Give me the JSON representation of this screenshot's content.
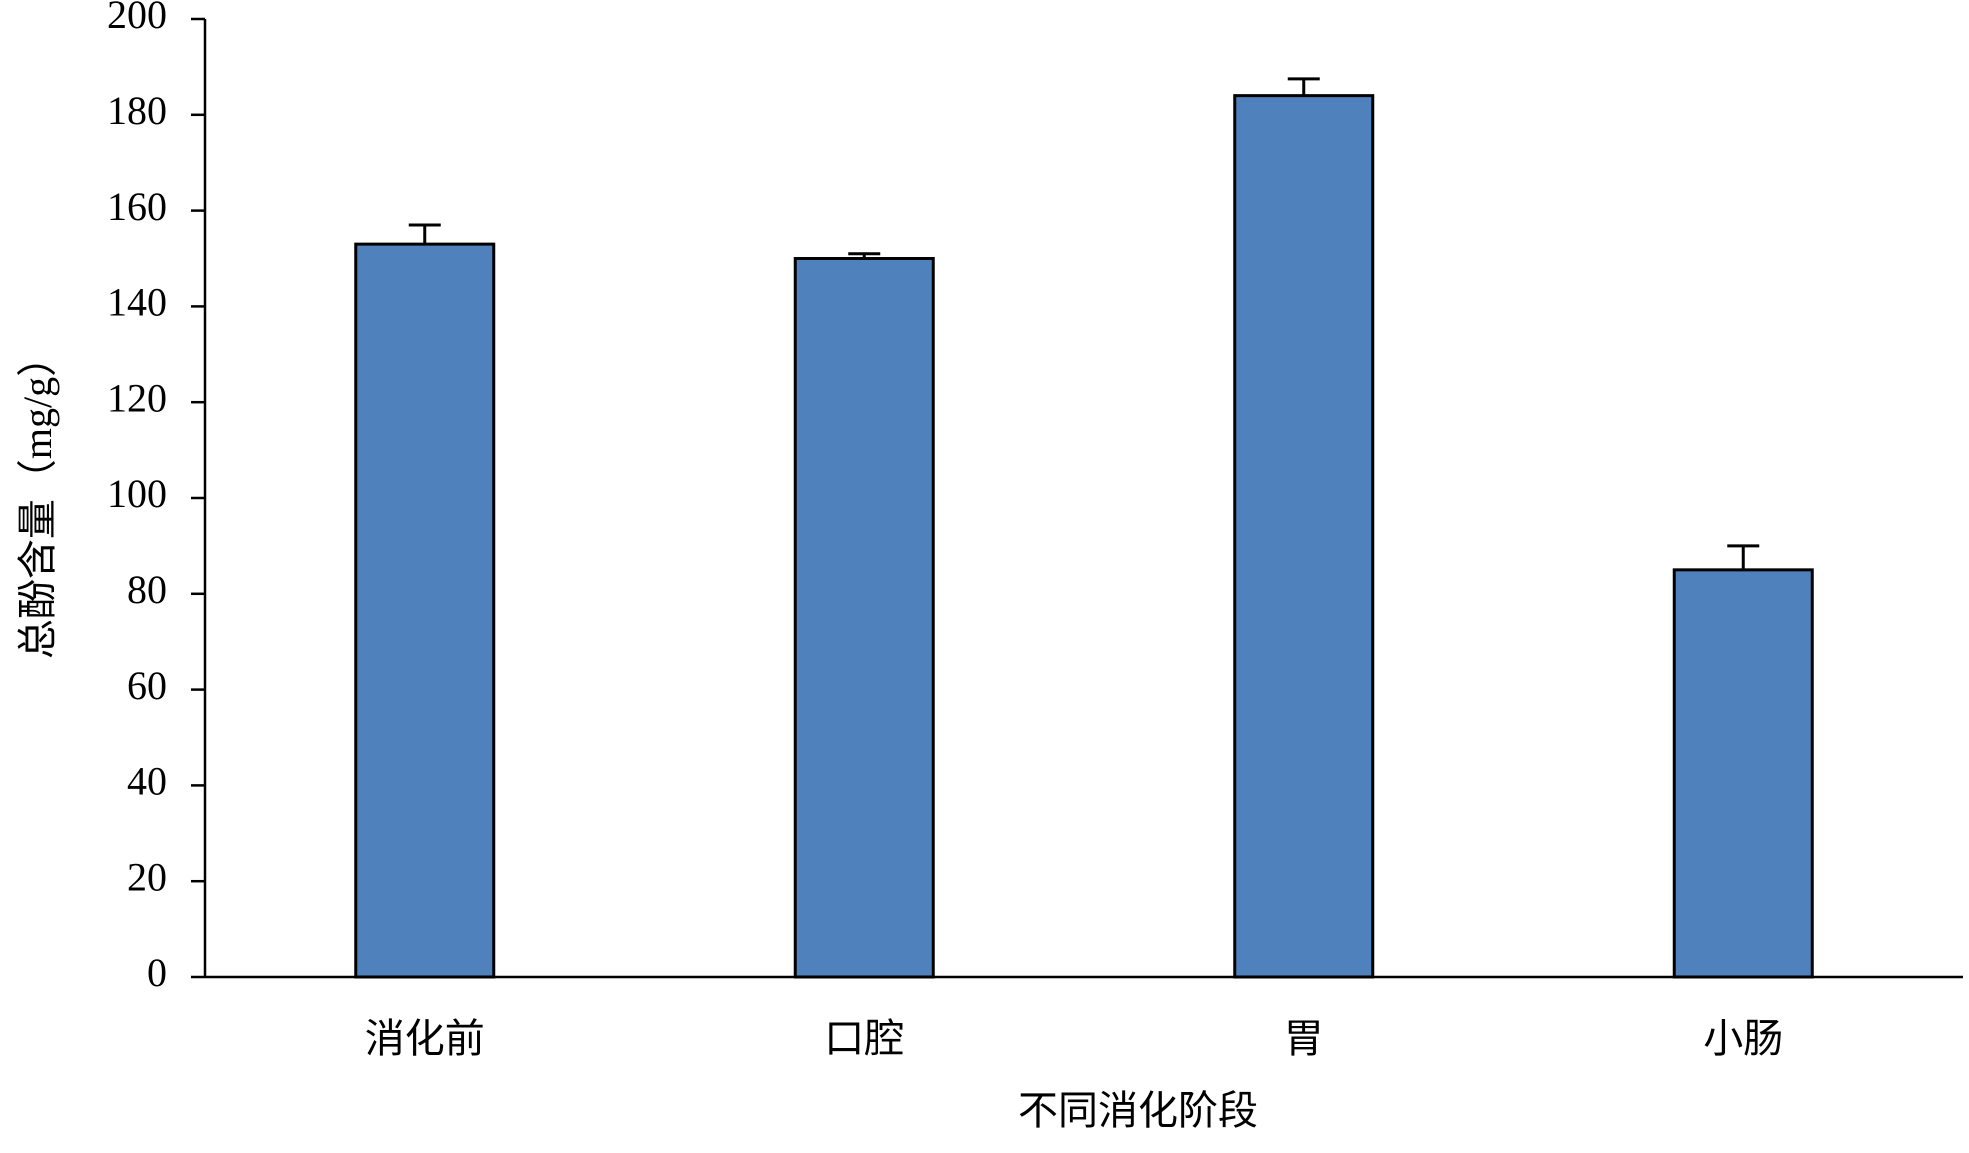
{
  "chart_data": {
    "type": "bar",
    "x_label": "不同消化阶段",
    "y_label": "总酚含量（mg/g）",
    "categories": [
      "消化前",
      "口腔",
      "胃",
      "小肠"
    ],
    "values": [
      153,
      150,
      184,
      85
    ],
    "errors": [
      4,
      1,
      3.5,
      5
    ],
    "color": "#4f81bd",
    "ylim": [
      0,
      200
    ],
    "yticks": [
      0,
      20,
      40,
      60,
      80,
      100,
      120,
      140,
      160,
      180,
      200
    ],
    "grid": false
  }
}
